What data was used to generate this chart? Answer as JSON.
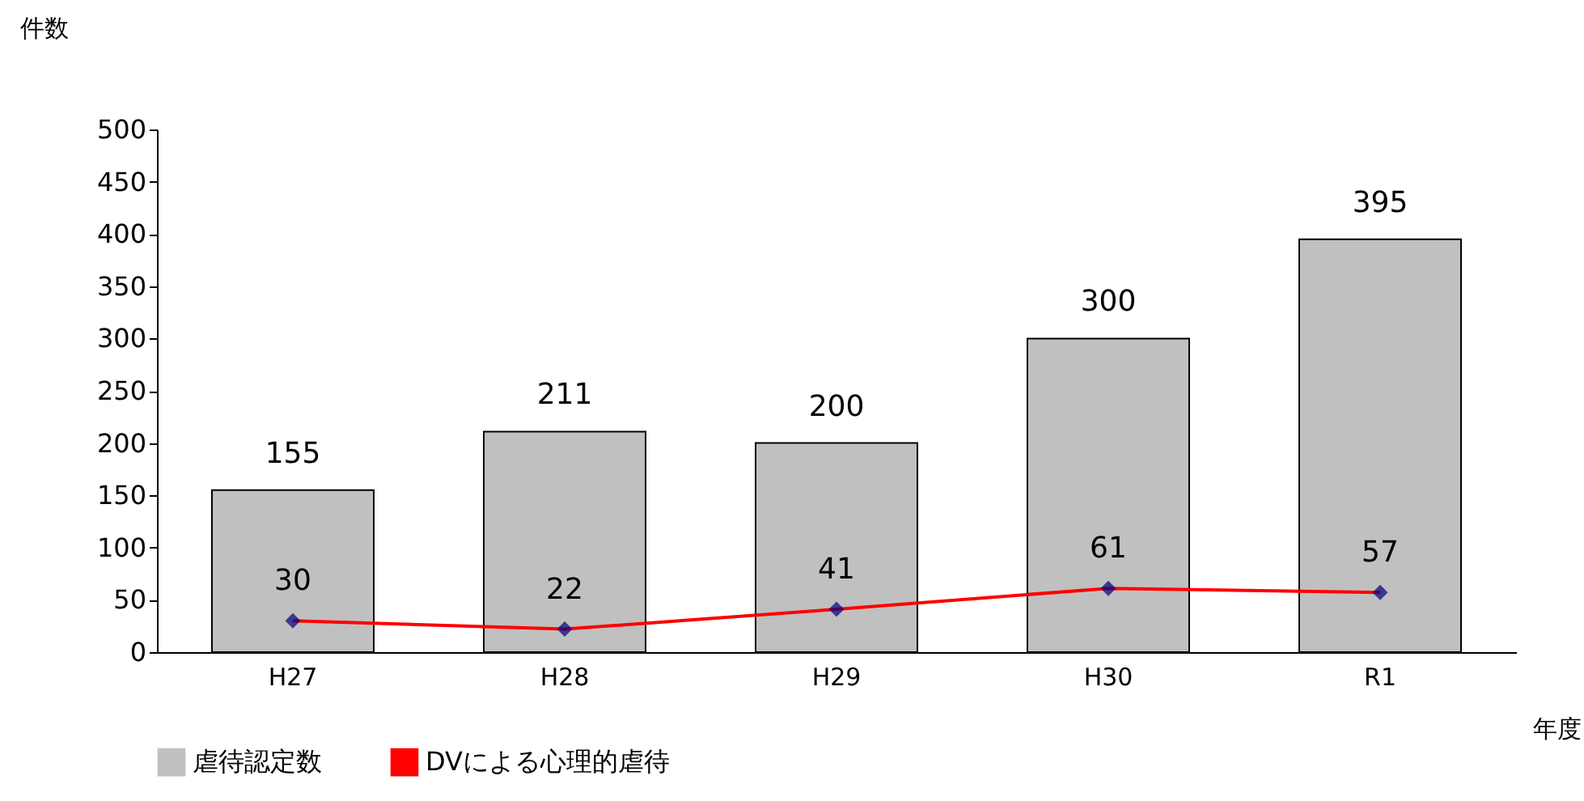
{
  "chart_data": {
    "type": "bar",
    "categories": [
      "H27",
      "H28",
      "H29",
      "H30",
      "R1"
    ],
    "series": [
      {
        "name": "虐待認定数",
        "color": "#c0c0c0",
        "values": [
          155,
          211,
          200,
          300,
          395
        ]
      },
      {
        "name": "DVによる心理的虐待",
        "type": "line",
        "color": "#ff0000",
        "values": [
          30,
          22,
          41,
          61,
          57
        ]
      }
    ],
    "ylabel": "件数",
    "xlabel": "年度",
    "ylim": [
      0,
      500
    ],
    "yticks": [
      0,
      50,
      100,
      150,
      200,
      250,
      300,
      350,
      400,
      450,
      500
    ],
    "data_labels": true,
    "legend": "bottom",
    "grid": false,
    "marker": "diamond"
  }
}
